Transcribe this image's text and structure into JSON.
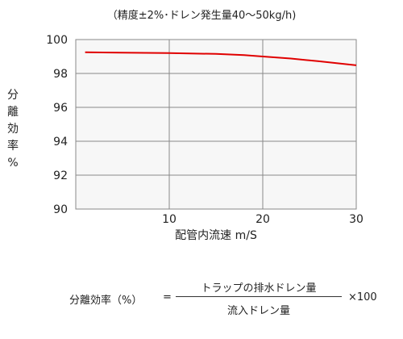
{
  "chart_data": {
    "type": "line",
    "subtitle": "（精度±2%･ドレン発生量40～50kg/h)",
    "xlabel": "配管内流速 m/S",
    "ylabel": [
      "分",
      "離",
      "効",
      "率",
      "%"
    ],
    "xlim": [
      0,
      30
    ],
    "ylim": [
      90,
      100
    ],
    "x_ticks": [
      10,
      20,
      30
    ],
    "y_ticks": [
      90,
      92,
      94,
      96,
      98,
      100
    ],
    "grid": true,
    "line_color": "#e00000",
    "series": [
      {
        "x": [
          1,
          5,
          10,
          15,
          18,
          20,
          23,
          26,
          28,
          30
        ],
        "y": [
          99.25,
          99.23,
          99.2,
          99.15,
          99.08,
          99.0,
          98.88,
          98.72,
          98.6,
          98.48
        ]
      }
    ]
  },
  "formula": {
    "left": "分離効率（%）",
    "equals": "=",
    "numerator": "トラップの排水ドレン量",
    "denominator": "流入ドレン量",
    "multiplier": "×100"
  }
}
